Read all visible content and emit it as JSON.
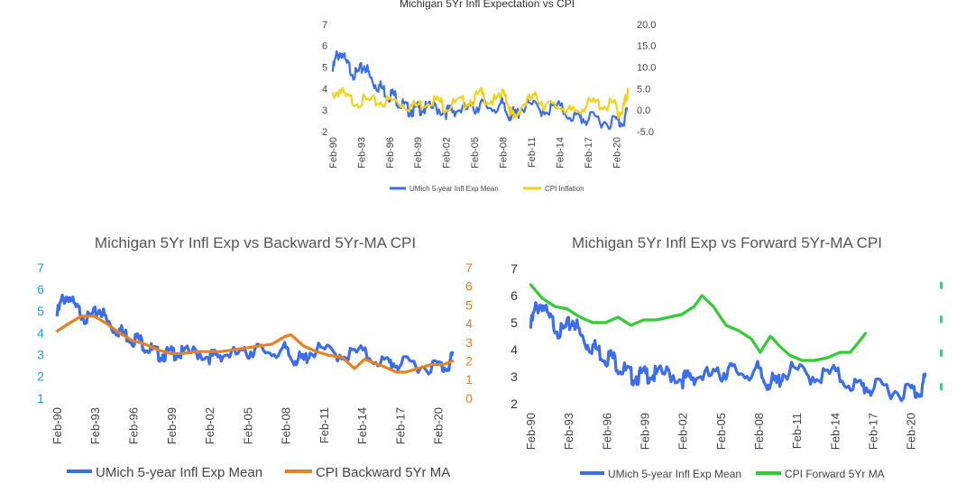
{
  "chart_data": [
    {
      "id": "top",
      "type": "line",
      "title": "Michigan 5Yr Infl Expectation vs CPI",
      "left_axis": {
        "range": [
          2,
          7
        ],
        "ticks": [
          "2",
          "3",
          "4",
          "5",
          "6",
          "7"
        ],
        "color": "#444444"
      },
      "right_axis": {
        "range": [
          -5,
          20
        ],
        "ticks": [
          "-5.0",
          "0.0",
          "5.0",
          "10.0",
          "15.0",
          "20.0"
        ],
        "color": "#444444"
      },
      "x_range": [
        1990.0,
        2021.3
      ],
      "x_ticks": [
        "Feb-90",
        "Feb-93",
        "Feb-96",
        "Feb-99",
        "Feb-02",
        "Feb-05",
        "Feb-08",
        "Feb-11",
        "Feb-14",
        "Feb-17",
        "Feb-20"
      ],
      "legend_position": "bottom",
      "series": [
        {
          "name": "UMich 5-year Infl Exp Mean",
          "axis": "left",
          "color": "#3b6ee8",
          "x": [
            1990.1,
            1990.5,
            1991.0,
            1991.5,
            1992.0,
            1992.5,
            1993.0,
            1993.5,
            1994.0,
            1994.5,
            1995.0,
            1995.5,
            1996.0,
            1996.5,
            1997.0,
            1997.5,
            1998.0,
            1998.5,
            1999.0,
            1999.5,
            2000.0,
            2001.0,
            2002.0,
            2002.5,
            2003.0,
            2004.0,
            2005.0,
            2005.5,
            2006.0,
            2007.0,
            2008.0,
            2008.5,
            2009.0,
            2009.5,
            2010.0,
            2011.0,
            2012.0,
            2013.0,
            2014.0,
            2015.0,
            2016.0,
            2016.5,
            2017.0,
            2018.0,
            2019.0,
            2020.0,
            2020.5,
            2021.0,
            2021.2
          ],
          "values": [
            5.0,
            5.7,
            5.9,
            5.3,
            5.1,
            4.8,
            5.0,
            5.3,
            4.7,
            4.4,
            4.3,
            4.1,
            3.9,
            3.9,
            3.6,
            3.4,
            3.2,
            3.2,
            3.2,
            3.3,
            3.2,
            3.3,
            3.1,
            3.1,
            3.2,
            3.2,
            3.2,
            3.4,
            3.4,
            3.3,
            3.4,
            3.0,
            3.0,
            2.9,
            3.3,
            3.4,
            3.2,
            3.2,
            3.3,
            3.0,
            2.8,
            2.8,
            2.7,
            2.8,
            2.6,
            2.7,
            2.6,
            2.8,
            3.1
          ]
        },
        {
          "name": "CPI Inflation",
          "axis": "right",
          "color": "#f2d21b",
          "x": [
            1990.1,
            1990.8,
            1991.5,
            1992.5,
            1993.5,
            1994.5,
            1995.5,
            1996.5,
            1997.5,
            1998.5,
            1999.5,
            2000.5,
            2001.5,
            2002.0,
            2003.0,
            2004.0,
            2005.0,
            2005.8,
            2006.5,
            2007.5,
            2008.3,
            2008.8,
            2009.3,
            2010.0,
            2011.0,
            2011.8,
            2012.5,
            2013.5,
            2014.5,
            2015.3,
            2016.0,
            2017.0,
            2018.0,
            2019.0,
            2019.8,
            2020.3,
            2020.8,
            2021.0,
            2021.3
          ],
          "values": [
            4.5,
            5.5,
            3.5,
            3.0,
            2.9,
            2.6,
            2.8,
            3.0,
            2.3,
            1.6,
            2.2,
            3.4,
            2.6,
            1.4,
            2.3,
            2.7,
            3.4,
            4.5,
            3.2,
            2.8,
            5.3,
            1.0,
            -1.5,
            1.8,
            3.2,
            3.8,
            2.0,
            1.5,
            1.7,
            0.0,
            1.0,
            2.1,
            2.4,
            1.8,
            2.3,
            0.3,
            1.2,
            2.6,
            5.0
          ]
        }
      ]
    },
    {
      "id": "left",
      "type": "line",
      "title": "Michigan 5Yr Infl Exp vs Backward 5Yr-MA CPI",
      "left_axis": {
        "range": [
          1,
          7
        ],
        "ticks": [
          "1",
          "2",
          "3",
          "4",
          "5",
          "6",
          "7"
        ],
        "color": "#1aa0d8"
      },
      "right_axis": {
        "range": [
          0,
          7
        ],
        "ticks": [
          "0",
          "1",
          "2",
          "3",
          "4",
          "5",
          "6",
          "7"
        ],
        "color": "#e8821f"
      },
      "x_range": [
        1990.0,
        2021.3
      ],
      "x_ticks": [
        "Feb-90",
        "Feb-93",
        "Feb-96",
        "Feb-99",
        "Feb-02",
        "Feb-05",
        "Feb-08",
        "Feb-11",
        "Feb-14",
        "Feb-17",
        "Feb-20"
      ],
      "legend_position": "bottom",
      "series": [
        {
          "name": "UMich 5-year Infl Exp Mean",
          "axis": "left",
          "color": "#3b6ee8",
          "x": [
            1990.1,
            1990.5,
            1991.0,
            1991.5,
            1992.0,
            1992.5,
            1993.0,
            1993.5,
            1994.0,
            1994.5,
            1995.0,
            1995.5,
            1996.0,
            1996.5,
            1997.0,
            1997.5,
            1998.0,
            1998.5,
            1999.0,
            1999.5,
            2000.0,
            2001.0,
            2002.0,
            2002.5,
            2003.0,
            2004.0,
            2005.0,
            2005.5,
            2006.0,
            2007.0,
            2008.0,
            2008.5,
            2009.0,
            2009.5,
            2010.0,
            2011.0,
            2012.0,
            2013.0,
            2014.0,
            2015.0,
            2016.0,
            2016.5,
            2017.0,
            2018.0,
            2019.0,
            2020.0,
            2020.5,
            2021.0,
            2021.2
          ],
          "values": [
            5.0,
            5.7,
            5.9,
            5.3,
            5.1,
            4.8,
            5.0,
            5.3,
            4.7,
            4.4,
            4.3,
            4.1,
            3.9,
            3.9,
            3.6,
            3.4,
            3.2,
            3.2,
            3.2,
            3.3,
            3.2,
            3.3,
            3.1,
            3.1,
            3.2,
            3.2,
            3.2,
            3.4,
            3.4,
            3.3,
            3.4,
            3.0,
            3.0,
            2.9,
            3.3,
            3.4,
            3.2,
            3.2,
            3.3,
            3.0,
            2.8,
            2.8,
            2.7,
            2.8,
            2.6,
            2.7,
            2.6,
            2.8,
            3.1
          ]
        },
        {
          "name": "CPI Backward 5Yr MA",
          "axis": "right",
          "color": "#e8821f",
          "x": [
            1990.1,
            1991.0,
            1992.0,
            1993.0,
            1994.0,
            1995.0,
            1996.0,
            1997.0,
            1998.0,
            1999.0,
            2000.0,
            2001.0,
            2002.0,
            2003.0,
            2004.0,
            2005.0,
            2006.0,
            2007.0,
            2008.0,
            2008.5,
            2009.5,
            2010.5,
            2011.5,
            2012.5,
            2013.5,
            2014.3,
            2015.0,
            2015.8,
            2016.8,
            2017.5,
            2018.5,
            2019.5,
            2020.5,
            2021.2
          ],
          "values": [
            3.6,
            4.0,
            4.4,
            4.4,
            4.0,
            3.5,
            3.1,
            2.9,
            2.6,
            2.4,
            2.4,
            2.5,
            2.5,
            2.5,
            2.6,
            2.7,
            2.8,
            2.9,
            3.3,
            3.4,
            2.8,
            2.5,
            2.3,
            2.2,
            1.6,
            2.1,
            1.9,
            1.7,
            1.4,
            1.4,
            1.6,
            1.8,
            1.8,
            2.0
          ]
        }
      ]
    },
    {
      "id": "right",
      "type": "line",
      "title": "Michigan 5Yr Infl Exp vs Forward 5Yr-MA CPI",
      "left_axis": {
        "range": [
          2,
          7
        ],
        "ticks": [
          "2",
          "3",
          "4",
          "5",
          "6",
          "7"
        ],
        "color": "#333333"
      },
      "right_axis": {
        "range": [
          0,
          4
        ],
        "color": "#22bb66"
      },
      "x_range": [
        1990.0,
        2021.3
      ],
      "x_ticks": [
        "Feb-90",
        "Feb-93",
        "Feb-96",
        "Feb-99",
        "Feb-02",
        "Feb-05",
        "Feb-08",
        "Feb-11",
        "Feb-14",
        "Feb-17",
        "Feb-20"
      ],
      "legend_position": "bottom",
      "series": [
        {
          "name": "UMich 5-year Infl Exp Mean",
          "axis": "left",
          "color": "#3b6ee8",
          "x": [
            1990.1,
            1990.5,
            1991.0,
            1991.5,
            1992.0,
            1992.5,
            1993.0,
            1993.5,
            1994.0,
            1994.5,
            1995.0,
            1995.5,
            1996.0,
            1996.5,
            1997.0,
            1997.5,
            1998.0,
            1998.5,
            1999.0,
            1999.5,
            2000.0,
            2001.0,
            2002.0,
            2002.5,
            2003.0,
            2004.0,
            2005.0,
            2005.5,
            2006.0,
            2007.0,
            2008.0,
            2008.5,
            2009.0,
            2009.5,
            2010.0,
            2011.0,
            2012.0,
            2013.0,
            2014.0,
            2015.0,
            2016.0,
            2016.5,
            2017.0,
            2018.0,
            2019.0,
            2020.0,
            2020.5,
            2021.0,
            2021.2
          ],
          "values": [
            5.0,
            5.7,
            5.9,
            5.3,
            5.1,
            4.8,
            5.0,
            5.3,
            4.7,
            4.4,
            4.3,
            4.1,
            3.9,
            3.9,
            3.6,
            3.4,
            3.2,
            3.2,
            3.2,
            3.3,
            3.2,
            3.3,
            3.1,
            3.1,
            3.2,
            3.2,
            3.2,
            3.4,
            3.4,
            3.3,
            3.4,
            3.0,
            3.0,
            2.9,
            3.3,
            3.4,
            3.2,
            3.2,
            3.3,
            3.0,
            2.8,
            2.8,
            2.7,
            2.8,
            2.6,
            2.7,
            2.6,
            2.8,
            3.1
          ]
        },
        {
          "name": "CPI Forward 5Yr MA",
          "axis": "left",
          "color": "#33cc33",
          "x": [
            1990.1,
            1991.0,
            1992.0,
            1993.0,
            1994.0,
            1995.0,
            1996.0,
            1997.0,
            1998.0,
            1999.0,
            2000.0,
            2001.0,
            2002.0,
            2003.0,
            2003.6,
            2004.5,
            2005.5,
            2006.5,
            2007.5,
            2008.2,
            2009.0,
            2009.8,
            2010.5,
            2011.5,
            2012.5,
            2013.5,
            2014.5,
            2015.3,
            2016.0,
            2016.5
          ],
          "values": [
            6.4,
            5.9,
            5.6,
            5.5,
            5.2,
            5.0,
            5.0,
            5.2,
            4.9,
            5.1,
            5.1,
            5.2,
            5.3,
            5.6,
            6.0,
            5.6,
            4.9,
            4.7,
            4.4,
            3.9,
            4.5,
            4.1,
            3.8,
            3.6,
            3.6,
            3.7,
            3.9,
            3.9,
            4.3,
            4.6
          ]
        }
      ]
    }
  ]
}
